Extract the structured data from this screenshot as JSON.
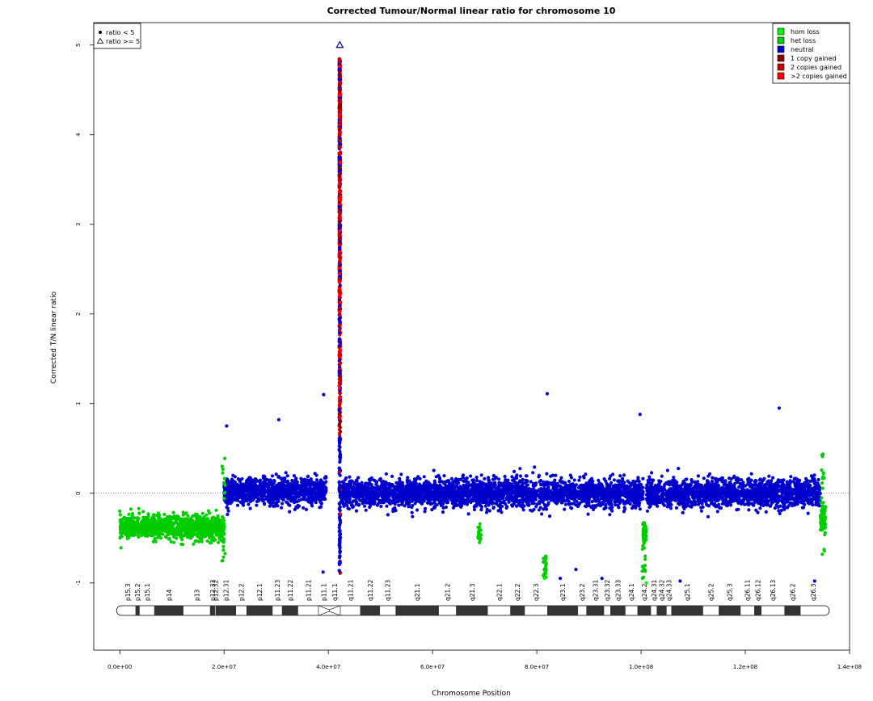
{
  "chart_data": {
    "type": "scatter",
    "title": "Corrected Tumour/Normal linear ratio for chromosome  10",
    "xlabel": "Chromosome Position",
    "ylabel": "Corrected T/N linear ratio",
    "xlim": [
      -5000000,
      140000000
    ],
    "ylim": [
      -1.75,
      5.25
    ],
    "x_ticks": [
      0,
      20000000,
      40000000,
      60000000,
      80000000,
      100000000,
      120000000,
      140000000
    ],
    "x_tick_labels": [
      "0.0e+00",
      "2.0e+07",
      "4.0e+07",
      "6.0e+07",
      "8.0e+07",
      "1.0e+08",
      "1.2e+08",
      "1.4e+08"
    ],
    "y_ticks": [
      -1,
      0,
      1,
      2,
      3,
      4,
      5
    ],
    "y_tick_labels": [
      "-1",
      "0",
      "1",
      "2",
      "3",
      "4",
      "5"
    ],
    "reference_line": 0,
    "grid": false,
    "shape_legend": {
      "placement": "top-left",
      "entries": [
        {
          "symbol": "dot",
          "label": "ratio < 5"
        },
        {
          "symbol": "triangle",
          "label": "ratio >= 5"
        }
      ]
    },
    "legend": {
      "placement": "top-right",
      "entries": [
        {
          "label": "hom loss",
          "color": "#00ff00"
        },
        {
          "label": "het loss",
          "color": "#00cd00"
        },
        {
          "label": "neutral",
          "color": "#0000cd"
        },
        {
          "label": "1 copy gained",
          "color": "#8b0000"
        },
        {
          "label": "2 copies gained",
          "color": "#cd0000"
        },
        {
          "label": ">2 copies gained",
          "color": "#ff0000"
        }
      ]
    },
    "segments": [
      {
        "state": "het loss",
        "x_start": 0,
        "x_end": 20000000,
        "mean_ratio": -0.38,
        "spread": 0.12
      },
      {
        "state": "neutral",
        "x_start": 20000000,
        "x_end": 39600000,
        "mean_ratio": 0.02,
        "spread": 0.14
      },
      {
        "state": "neutral",
        "x_start": 42400000,
        "x_end": 100400000,
        "mean_ratio": 0.0,
        "spread": 0.14
      },
      {
        "state": "het loss",
        "x_start": 100400000,
        "x_end": 101000000,
        "mean_ratio": -0.45,
        "spread": 0.1
      },
      {
        "state": "neutral",
        "x_start": 101000000,
        "x_end": 134400000,
        "mean_ratio": 0.0,
        "spread": 0.14
      },
      {
        "state": "het loss",
        "x_start": 134400000,
        "x_end": 135400000,
        "mean_ratio": -0.3,
        "spread": 0.15
      }
    ],
    "centromere_spike": {
      "x": 42200000,
      "y_min": -1.0,
      "y_max": 5.0,
      "triangle_at": 5.0
    },
    "outliers": [
      {
        "x": 20500000,
        "y": 0.75,
        "state": "neutral"
      },
      {
        "x": 30500000,
        "y": 0.82,
        "state": "neutral"
      },
      {
        "x": 39100000,
        "y": 1.1,
        "state": "neutral"
      },
      {
        "x": 82000000,
        "y": 1.11,
        "state": "neutral"
      },
      {
        "x": 99800000,
        "y": 0.88,
        "state": "neutral"
      },
      {
        "x": 69000000,
        "y": -0.55,
        "state": "het loss"
      },
      {
        "x": 81500000,
        "y": -0.95,
        "state": "hom loss"
      },
      {
        "x": 84500000,
        "y": -0.95,
        "state": "neutral"
      },
      {
        "x": 87500000,
        "y": -0.85,
        "state": "neutral"
      },
      {
        "x": 92500000,
        "y": -0.95,
        "state": "neutral"
      },
      {
        "x": 107500000,
        "y": -0.98,
        "state": "neutral"
      },
      {
        "x": 126500000,
        "y": 0.95,
        "state": "neutral"
      },
      {
        "x": 133300000,
        "y": -0.98,
        "state": "neutral"
      },
      {
        "x": 101000000,
        "y": -1.0,
        "state": "hom loss"
      },
      {
        "x": 39000000,
        "y": -0.88,
        "state": "neutral"
      }
    ],
    "cytobands": [
      {
        "name": "p15.3",
        "start": 0,
        "end": 3000000,
        "stain": "gneg"
      },
      {
        "name": "p15.2",
        "start": 3000000,
        "end": 3800000,
        "stain": "gpos"
      },
      {
        "name": "p15.1",
        "start": 3800000,
        "end": 6600000,
        "stain": "gneg"
      },
      {
        "name": "p14",
        "start": 6600000,
        "end": 12200000,
        "stain": "gpos"
      },
      {
        "name": "p13",
        "start": 12200000,
        "end": 17300000,
        "stain": "gneg"
      },
      {
        "name": "p12.33",
        "start": 17300000,
        "end": 18300000,
        "stain": "gpos"
      },
      {
        "name": "p12.32",
        "start": 18300000,
        "end": 18400000,
        "stain": "gneg"
      },
      {
        "name": "p12.31",
        "start": 18400000,
        "end": 22300000,
        "stain": "gpos"
      },
      {
        "name": "p12.2",
        "start": 22300000,
        "end": 24300000,
        "stain": "gneg"
      },
      {
        "name": "p12.1",
        "start": 24300000,
        "end": 29300000,
        "stain": "gpos"
      },
      {
        "name": "p11.23",
        "start": 29300000,
        "end": 31100000,
        "stain": "gneg"
      },
      {
        "name": "p11.22",
        "start": 31100000,
        "end": 34200000,
        "stain": "gpos"
      },
      {
        "name": "p11.21",
        "start": 34200000,
        "end": 38100000,
        "stain": "gneg"
      },
      {
        "name": "p11.1",
        "start": 38100000,
        "end": 40200000,
        "stain": "acen"
      },
      {
        "name": "q11.1",
        "start": 40200000,
        "end": 42300000,
        "stain": "acen"
      },
      {
        "name": "q11.21",
        "start": 42300000,
        "end": 46100000,
        "stain": "gneg"
      },
      {
        "name": "q11.22",
        "start": 46100000,
        "end": 49900000,
        "stain": "gpos"
      },
      {
        "name": "q11.23",
        "start": 49900000,
        "end": 52900000,
        "stain": "gneg"
      },
      {
        "name": "q21.1",
        "start": 52900000,
        "end": 61200000,
        "stain": "gpos"
      },
      {
        "name": "q21.2",
        "start": 61200000,
        "end": 64500000,
        "stain": "gneg"
      },
      {
        "name": "q21.3",
        "start": 64500000,
        "end": 70600000,
        "stain": "gpos"
      },
      {
        "name": "q22.1",
        "start": 70600000,
        "end": 74900000,
        "stain": "gneg"
      },
      {
        "name": "q22.2",
        "start": 74900000,
        "end": 77700000,
        "stain": "gpos"
      },
      {
        "name": "q22.3",
        "start": 77700000,
        "end": 82000000,
        "stain": "gneg"
      },
      {
        "name": "q23.1",
        "start": 82000000,
        "end": 87900000,
        "stain": "gpos"
      },
      {
        "name": "q23.2",
        "start": 87900000,
        "end": 89500000,
        "stain": "gneg"
      },
      {
        "name": "q23.31",
        "start": 89500000,
        "end": 92900000,
        "stain": "gpos"
      },
      {
        "name": "q23.32",
        "start": 92900000,
        "end": 94100000,
        "stain": "gneg"
      },
      {
        "name": "q23.33",
        "start": 94100000,
        "end": 97000000,
        "stain": "gpos"
      },
      {
        "name": "q24.1",
        "start": 97000000,
        "end": 99300000,
        "stain": "gneg"
      },
      {
        "name": "q24.2",
        "start": 99300000,
        "end": 101900000,
        "stain": "gpos"
      },
      {
        "name": "q24.31",
        "start": 101900000,
        "end": 103000000,
        "stain": "gneg"
      },
      {
        "name": "q24.32",
        "start": 103000000,
        "end": 104900000,
        "stain": "gpos"
      },
      {
        "name": "q24.33",
        "start": 104900000,
        "end": 105800000,
        "stain": "gneg"
      },
      {
        "name": "q25.1",
        "start": 105800000,
        "end": 111900000,
        "stain": "gpos"
      },
      {
        "name": "q25.2",
        "start": 111900000,
        "end": 114900000,
        "stain": "gneg"
      },
      {
        "name": "q25.3",
        "start": 114900000,
        "end": 119100000,
        "stain": "gpos"
      },
      {
        "name": "q26.11",
        "start": 119100000,
        "end": 121700000,
        "stain": "gneg"
      },
      {
        "name": "q26.12",
        "start": 121700000,
        "end": 123100000,
        "stain": "gpos"
      },
      {
        "name": "q26.13",
        "start": 123100000,
        "end": 127500000,
        "stain": "gneg"
      },
      {
        "name": "q26.2",
        "start": 127500000,
        "end": 130600000,
        "stain": "gpos"
      },
      {
        "name": "q26.3",
        "start": 130600000,
        "end": 135500000,
        "stain": "gneg"
      }
    ]
  }
}
